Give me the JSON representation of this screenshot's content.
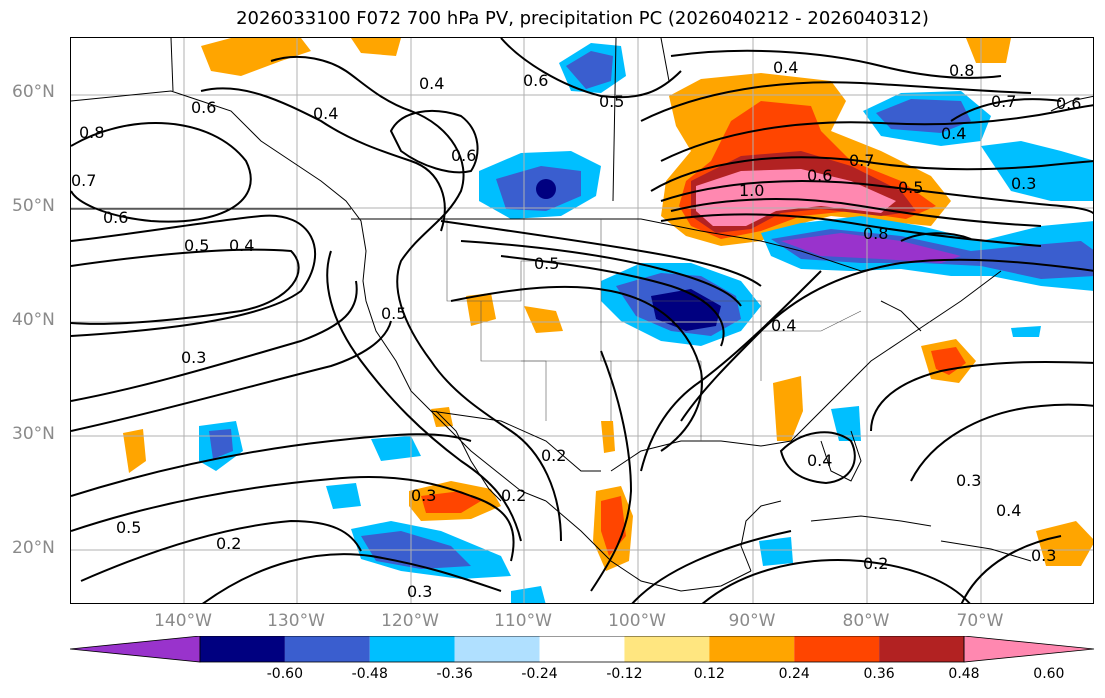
{
  "title": "2026033100 F072 700 hPa PV, precipitation PC (2026040212 - 2026040312)",
  "lat_labels": [
    "60°N",
    "50°N",
    "40°N",
    "30°N",
    "20°N"
  ],
  "lon_labels": [
    "140°W",
    "130°W",
    "120°W",
    "110°W",
    "100°W",
    "90°W",
    "80°W",
    "70°W"
  ],
  "contour_labels": [
    "0.4",
    "0.6",
    "0.5",
    "0.4",
    "0.8",
    "0.7",
    "0.6",
    "0.6",
    "0.4",
    "0.8",
    "0.6",
    "0.7",
    "0.6",
    "0.4",
    "0.3",
    "0.7",
    "0.6",
    "1.0",
    "0.5",
    "0.5",
    "0.4",
    "0.5",
    "0.8",
    "0.5",
    "0.3",
    "0.4",
    "0.2",
    "0.2",
    "0.3",
    "0.5",
    "0.2",
    "0.4",
    "0.3",
    "0.4",
    "0.3",
    "0.2",
    "0.3"
  ],
  "colorbar": {
    "colors": [
      "#9933cc",
      "#000080",
      "#3a5ecf",
      "#00bfff",
      "#b0e0ff",
      "#ffffff",
      "#ffe680",
      "#ffa500",
      "#ff4500",
      "#b22222",
      "#ff88b0"
    ],
    "ticks": [
      "-0.60",
      "-0.48",
      "-0.36",
      "-0.24",
      "-0.12",
      "0.12",
      "0.24",
      "0.36",
      "0.48",
      "0.60"
    ]
  }
}
